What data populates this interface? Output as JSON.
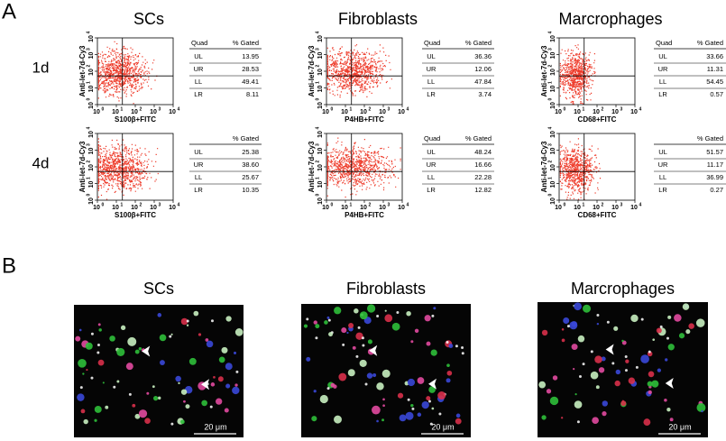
{
  "panel_a": {
    "label": "A",
    "columns": [
      "SCs",
      "Fibroblasts",
      "Marcrophages"
    ],
    "rows": [
      "1d",
      "4d"
    ],
    "y_axis_label": "Anti-let-7d-Cy3",
    "x_axis_labels": [
      "S100β+FITC",
      "P4HB+FITC",
      "CD68+FITC"
    ],
    "tick_base": "10",
    "tick_exponents": [
      "0",
      "1",
      "2",
      "3",
      "4"
    ],
    "tables": [
      [
        {
          "header": [
            "Quad",
            "% Gated"
          ],
          "rows": [
            [
              "UL",
              "13.95"
            ],
            [
              "UR",
              "28.53"
            ],
            [
              "LL",
              "49.41"
            ],
            [
              "LR",
              "8.11"
            ]
          ]
        },
        {
          "header": [
            "Quad",
            "% Gated"
          ],
          "rows": [
            [
              "UL",
              "36.36"
            ],
            [
              "UR",
              "12.06"
            ],
            [
              "LL",
              "47.84"
            ],
            [
              "LR",
              "3.74"
            ]
          ]
        },
        {
          "header": [
            "Quad",
            "% Gated"
          ],
          "rows": [
            [
              "UL",
              "33.66"
            ],
            [
              "UR",
              "11.31"
            ],
            [
              "LL",
              "54.45"
            ],
            [
              "LR",
              "0.57"
            ]
          ]
        }
      ],
      [
        {
          "header": [
            "% Gated"
          ],
          "rows": [
            [
              "UL",
              "25.38"
            ],
            [
              "UR",
              "38.60"
            ],
            [
              "LL",
              "25.67"
            ],
            [
              "LR",
              "10.35"
            ]
          ]
        },
        {
          "header": [
            "Quad",
            "% Gated"
          ],
          "rows": [
            [
              "UL",
              "48.24"
            ],
            [
              "UR",
              "16.66"
            ],
            [
              "LL",
              "22.28"
            ],
            [
              "LR",
              "12.82"
            ]
          ]
        },
        {
          "header": [
            "% Gated"
          ],
          "rows": [
            [
              "UL",
              "51.57"
            ],
            [
              "UR",
              "11.17"
            ],
            [
              "LL",
              "36.99"
            ],
            [
              "LR",
              "0.27"
            ]
          ]
        }
      ]
    ]
  },
  "panel_b": {
    "label": "B",
    "columns": [
      "SCs",
      "Fibroblasts",
      "Marcrophages"
    ],
    "scale_bar": "20 μm"
  }
}
